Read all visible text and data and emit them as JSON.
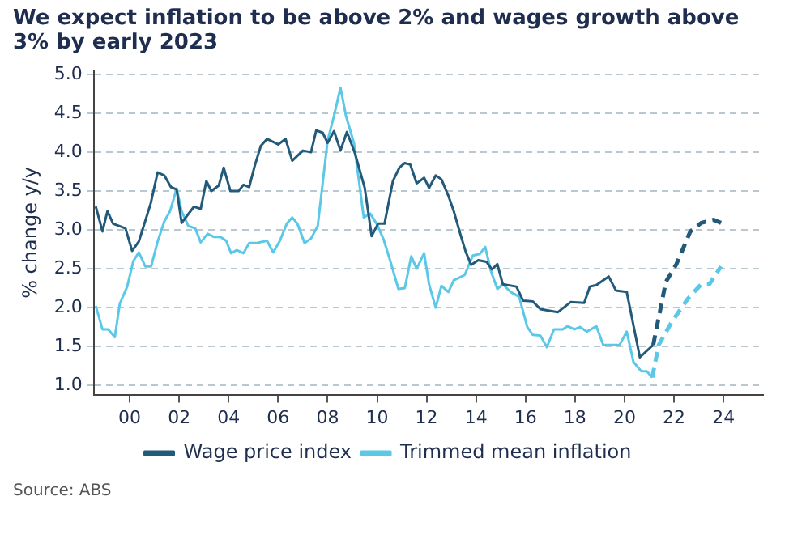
{
  "chart_data": {
    "type": "line",
    "title": "We expect inflation to be above 2% and wages growth above 3% by early 2023",
    "ylabel": "% change y/y",
    "annotations": [
      "Source: ABS"
    ],
    "xlim": [
      1998.55,
      2025.6
    ],
    "xticks": [
      {
        "value": 2000,
        "label": "00"
      },
      {
        "value": 2002,
        "label": "02"
      },
      {
        "value": 2004,
        "label": "04"
      },
      {
        "value": 2006,
        "label": "06"
      },
      {
        "value": 2008,
        "label": "08"
      },
      {
        "value": 2010,
        "label": "10"
      },
      {
        "value": 2012,
        "label": "12"
      },
      {
        "value": 2014,
        "label": "14"
      },
      {
        "value": 2016,
        "label": "16"
      },
      {
        "value": 2018,
        "label": "18"
      },
      {
        "value": 2020,
        "label": "20"
      },
      {
        "value": 2022,
        "label": "22"
      },
      {
        "value": 2024,
        "label": "24"
      }
    ],
    "ylim": [
      0.88,
      5.05
    ],
    "yticks": [
      {
        "value": 1,
        "label": "1.0"
      },
      {
        "value": 1.5,
        "label": "1.5"
      },
      {
        "value": 2,
        "label": "2.0"
      },
      {
        "value": 2.5,
        "label": "2.5"
      },
      {
        "value": 3,
        "label": "3.0"
      },
      {
        "value": 3.5,
        "label": "3.5"
      },
      {
        "value": 4,
        "label": "4.0"
      },
      {
        "value": 4.5,
        "label": "4.5"
      },
      {
        "value": 5,
        "label": "5.0"
      }
    ],
    "grid": "y",
    "legend": "bottom",
    "marker": "none",
    "series": [
      {
        "name": "Wage price index",
        "color": "#235a7a",
        "line_style": "solid",
        "x": [
          1998.63,
          1998.9,
          1999.1,
          1999.33,
          1999.83,
          2000.1,
          2000.37,
          2000.85,
          2001.13,
          2001.4,
          2001.67,
          2001.9,
          2002.1,
          2002.6,
          2002.87,
          2003.1,
          2003.3,
          2003.6,
          2003.8,
          2004.07,
          2004.4,
          2004.6,
          2004.83,
          2005.05,
          2005.3,
          2005.55,
          2006.0,
          2006.3,
          2006.57,
          2007.0,
          2007.33,
          2007.54,
          2007.8,
          2008.0,
          2008.26,
          2008.52,
          2008.78,
          2009.1,
          2009.5,
          2009.78,
          2010.04,
          2010.3,
          2010.64,
          2010.9,
          2011.12,
          2011.34,
          2011.6,
          2011.9,
          2012.1,
          2012.37,
          2012.6,
          2012.88,
          2013.1,
          2013.36,
          2013.58,
          2013.8,
          2014.09,
          2014.42,
          2014.64,
          2014.86,
          2015.08,
          2015.63,
          2015.9,
          2016.29,
          2016.6,
          2017.3,
          2017.82,
          2018.37,
          2018.6,
          2018.86,
          2019.36,
          2019.65,
          2020.09,
          2020.62,
          2021.16
        ],
        "values": [
          3.3,
          2.98,
          3.24,
          3.08,
          3.02,
          2.73,
          2.85,
          3.34,
          3.74,
          3.7,
          3.55,
          3.52,
          3.09,
          3.3,
          3.27,
          3.63,
          3.5,
          3.57,
          3.8,
          3.5,
          3.5,
          3.58,
          3.55,
          3.82,
          4.08,
          4.17,
          4.1,
          4.17,
          3.89,
          4.02,
          4.0,
          4.28,
          4.25,
          4.12,
          4.27,
          4.02,
          4.26,
          3.99,
          3.54,
          2.92,
          3.08,
          3.08,
          3.63,
          3.8,
          3.86,
          3.84,
          3.6,
          3.67,
          3.54,
          3.7,
          3.65,
          3.44,
          3.24,
          2.95,
          2.72,
          2.55,
          2.61,
          2.59,
          2.49,
          2.56,
          2.3,
          2.27,
          2.09,
          2.08,
          1.98,
          1.94,
          2.07,
          2.06,
          2.27,
          2.29,
          2.4,
          2.22,
          2.2,
          1.36,
          1.52
        ]
      },
      {
        "color": "#235a7a",
        "line_style": "dashed",
        "x": [
          2021.16,
          2021.67,
          2022.1,
          2022.66,
          2023.1,
          2023.6,
          2023.9
        ],
        "values": [
          1.52,
          2.33,
          2.56,
          2.98,
          3.09,
          3.13,
          3.09
        ]
      },
      {
        "name": "Trimmed mean inflation",
        "color": "#5bc8e8",
        "line_style": "solid",
        "x": [
          1998.63,
          1998.9,
          1999.13,
          1999.4,
          1999.6,
          1999.9,
          2000.15,
          2000.37,
          2000.63,
          2000.87,
          2001.13,
          2001.4,
          2001.63,
          2001.9,
          2002.1,
          2002.37,
          2002.65,
          2002.87,
          2003.15,
          2003.4,
          2003.67,
          2003.9,
          2004.1,
          2004.33,
          2004.6,
          2004.83,
          2005.1,
          2005.55,
          2005.8,
          2006.07,
          2006.35,
          2006.57,
          2006.78,
          2007.07,
          2007.33,
          2007.6,
          2008.0,
          2008.26,
          2008.52,
          2008.74,
          2009.07,
          2009.46,
          2009.72,
          2009.98,
          2010.26,
          2010.57,
          2010.86,
          2011.12,
          2011.38,
          2011.6,
          2011.9,
          2012.1,
          2012.37,
          2012.6,
          2012.88,
          2013.1,
          2013.54,
          2013.87,
          2014.15,
          2014.37,
          2014.6,
          2014.86,
          2015.08,
          2015.4,
          2015.74,
          2016.07,
          2016.29,
          2016.6,
          2016.86,
          2017.15,
          2017.5,
          2017.7,
          2017.98,
          2018.2,
          2018.48,
          2018.86,
          2019.14,
          2019.8,
          2020.09,
          2020.36,
          2020.68,
          2020.9,
          2021.12
        ],
        "values": [
          2.02,
          1.72,
          1.72,
          1.62,
          2.05,
          2.27,
          2.6,
          2.71,
          2.53,
          2.53,
          2.85,
          3.11,
          3.24,
          3.53,
          3.24,
          3.05,
          3.02,
          2.84,
          2.95,
          2.91,
          2.91,
          2.86,
          2.7,
          2.74,
          2.7,
          2.83,
          2.83,
          2.86,
          2.71,
          2.86,
          3.08,
          3.16,
          3.08,
          2.83,
          2.89,
          3.05,
          4.15,
          4.47,
          4.83,
          4.47,
          4.11,
          3.16,
          3.21,
          3.08,
          2.88,
          2.56,
          2.24,
          2.25,
          2.66,
          2.5,
          2.7,
          2.3,
          2.0,
          2.28,
          2.2,
          2.35,
          2.42,
          2.67,
          2.69,
          2.78,
          2.47,
          2.24,
          2.3,
          2.2,
          2.14,
          1.75,
          1.65,
          1.64,
          1.49,
          1.72,
          1.72,
          1.76,
          1.72,
          1.75,
          1.69,
          1.76,
          1.52,
          1.52,
          1.69,
          1.3,
          1.18,
          1.18,
          1.1
        ]
      },
      {
        "color": "#5bc8e8",
        "line_style": "dashed",
        "x": [
          2021.12,
          2021.38,
          2021.9,
          2022.55,
          2023.1,
          2023.43,
          2023.9
        ],
        "values": [
          1.1,
          1.52,
          1.81,
          2.11,
          2.3,
          2.3,
          2.53
        ]
      }
    ]
  }
}
